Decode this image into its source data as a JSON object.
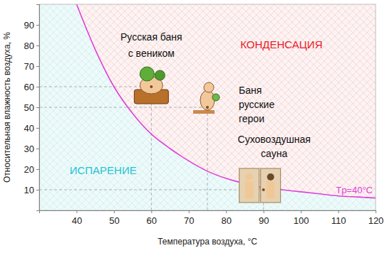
{
  "chart_data": {
    "type": "line",
    "x_label": "Температура воздуха, °C",
    "y_label": "Относительная влажность воздуха, %",
    "xlim": [
      30,
      120
    ],
    "ylim": [
      0,
      100
    ],
    "xticks": [
      40,
      50,
      60,
      70,
      80,
      90,
      100,
      110,
      120
    ],
    "yticks": [
      10,
      20,
      30,
      40,
      50,
      60,
      70,
      80,
      90
    ],
    "grid": false,
    "series": [
      {
        "name": "Tр=40°C",
        "color": "#e040d8",
        "x": [
          40,
          45,
          50,
          55,
          60,
          65,
          70,
          75,
          80,
          85,
          90,
          95,
          100,
          105,
          110,
          115,
          120
        ],
        "values": [
          100,
          78,
          60,
          47,
          37,
          30,
          24,
          19,
          15.5,
          13,
          11,
          10,
          9,
          8,
          7,
          6.5,
          6
        ]
      }
    ],
    "points": [
      {
        "label": [
          "Русская баня",
          "с веником"
        ],
        "x": 60,
        "y": 60
      },
      {
        "label": [
          "Баня",
          "русские",
          "герои"
        ],
        "x": 75,
        "y": 50
      },
      {
        "label": [
          "Суховоздушная",
          "сауна"
        ],
        "x": 90,
        "y": 10
      }
    ],
    "annotations": [
      {
        "text": "КОНДЕНСАЦИЯ",
        "color": "#e8202a"
      },
      {
        "text": "ИСПАРЕНИЕ",
        "color": "#22c4d4"
      }
    ]
  }
}
